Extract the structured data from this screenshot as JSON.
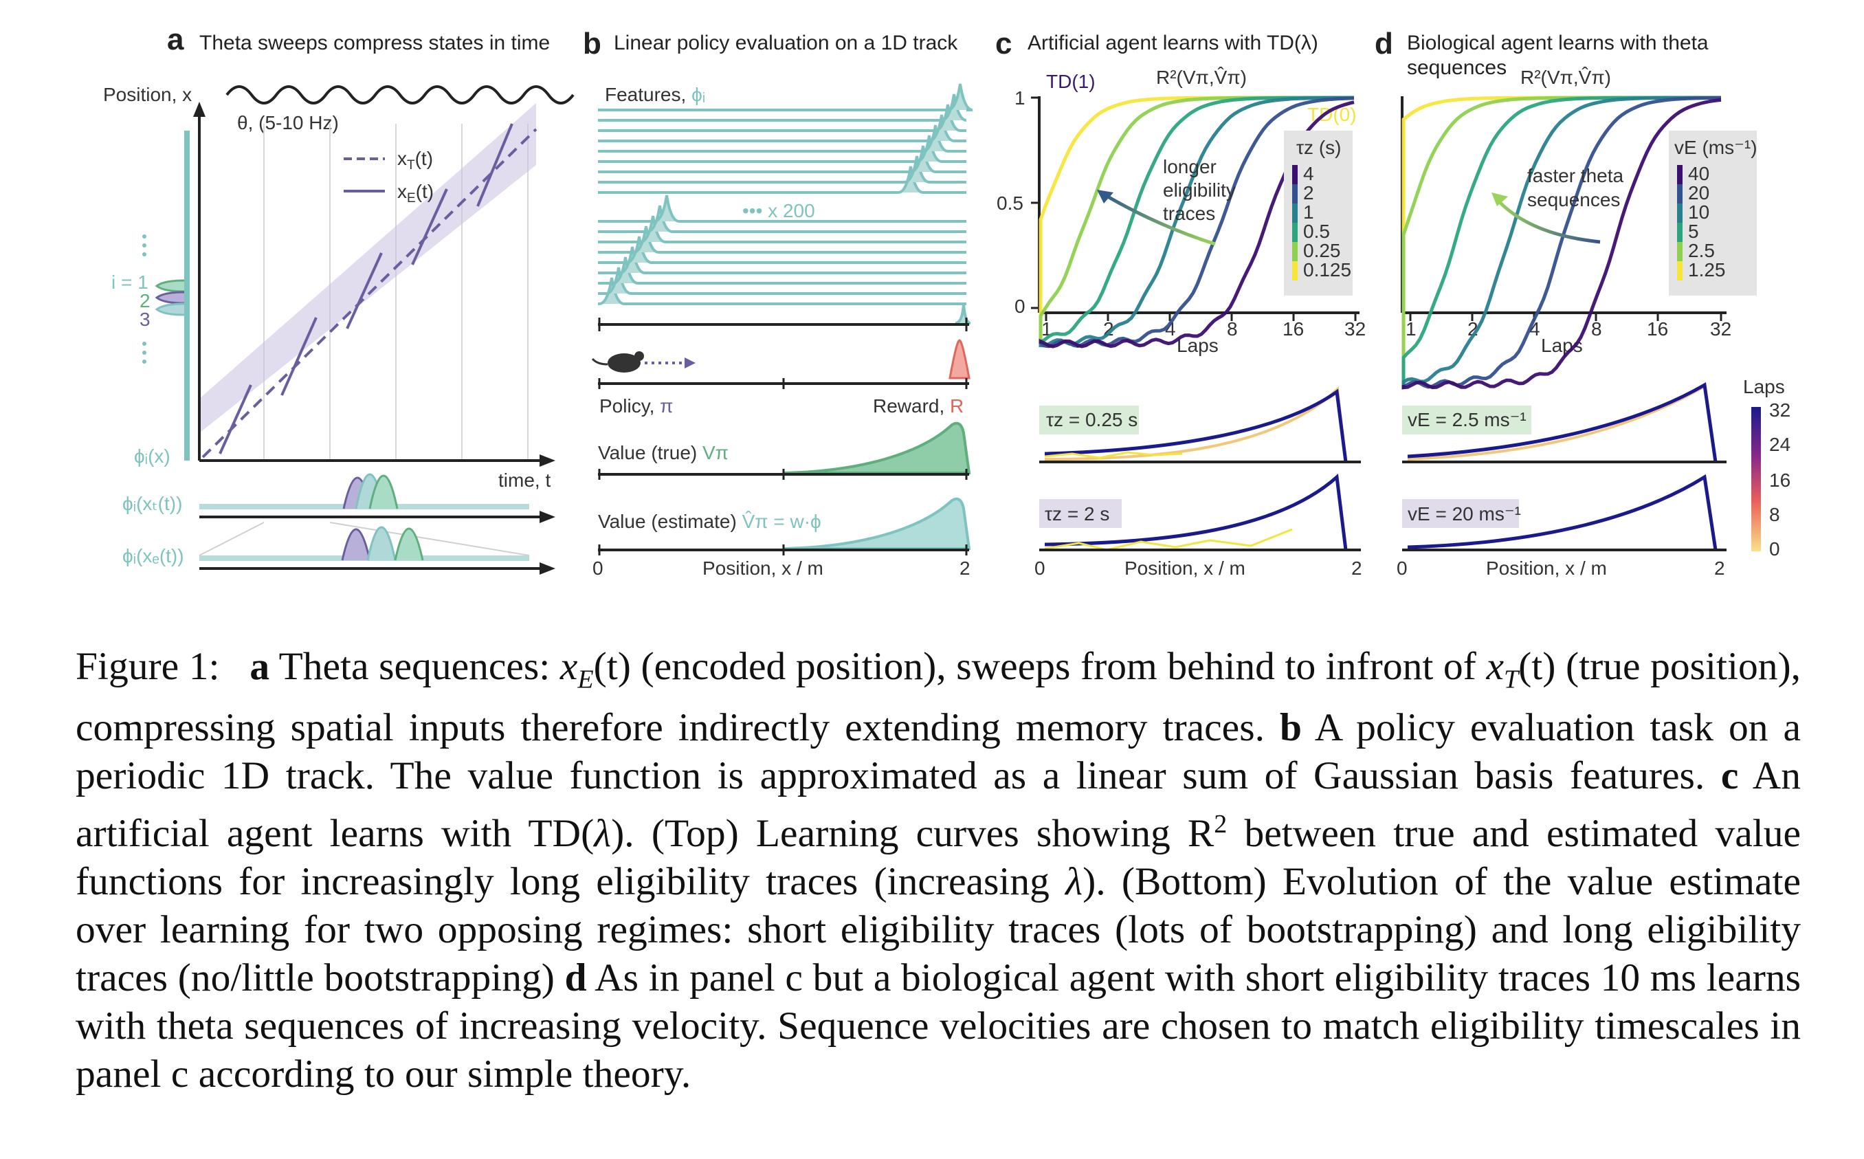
{
  "colors": {
    "teal": "#7fc3c1",
    "green": "#5fae7e",
    "purple": "#6a5f9e",
    "lavender": "#c8c0e0",
    "reward": "#e0665a",
    "yellow": "#f2e53c",
    "dark_purple": "#3a1a6e",
    "axis": "#222222"
  },
  "panel_a": {
    "letter": "a",
    "title": "Theta sweeps compress states in time",
    "y_label": "Position, x",
    "theta_label": "θ, (5-10 Hz)",
    "legend": [
      "xₜ(t)",
      "xᴇ(t)"
    ],
    "legend_true": "x",
    "legend_true_sub": "T",
    "legend_est": "x",
    "legend_est_sub": "E",
    "legend_suffix": "(t)",
    "feature_labels": [
      "i = 1",
      "2",
      "3"
    ],
    "phi_x": "ϕᵢ(x)",
    "phi_xt": "ϕᵢ(xₜ(t))",
    "phi_xe": "ϕᵢ(xₑ(t))",
    "x_label": "time, t"
  },
  "panel_b": {
    "letter": "b",
    "title": "Linear policy evaluation on a 1D track",
    "features_label": "Features, ",
    "features_symbol": "ϕᵢ",
    "count_label": "••• x 200",
    "policy_label": "Policy, ",
    "policy_symbol": "π",
    "reward_label": "Reward, ",
    "reward_symbol": "R",
    "value_true_label": "Value (true) ",
    "value_true_symbol": "Vπ",
    "value_est_label": "Value (estimate) ",
    "value_est_symbol": "V̂π = w·ϕ",
    "x_label": "Position, x  /  m",
    "x_ticks": [
      "0",
      "2"
    ]
  },
  "panel_c": {
    "letter": "c",
    "title": "Artificial agent learns with TD(λ)",
    "r2_label": "R²(Vπ,V̂π)",
    "td1": "TD(1)",
    "td0": "TD(0)",
    "annotation": [
      "longer",
      "eligibility",
      "traces"
    ],
    "legend_title": "τz (s)",
    "legend_items": [
      "4",
      "2",
      "1",
      "0.5",
      "0.25",
      "0.125"
    ],
    "x_label": "Laps",
    "x_ticks": [
      "1",
      "2",
      "4",
      "8",
      "16",
      "32"
    ],
    "y_ticks": [
      "0",
      "0.5",
      "1"
    ],
    "box1_label": "τz = 0.25 s",
    "box2_label": "τz = 2 s",
    "bottom_x_label": "Position, x  /  m",
    "bottom_x_ticks": [
      "0",
      "2"
    ]
  },
  "panel_d": {
    "letter": "d",
    "title_line1": "Biological agent learns with theta",
    "title_line2": "sequences",
    "r2_label": "R²(Vπ,V̂π)",
    "annotation": [
      "faster theta",
      "sequences"
    ],
    "legend_title": "vE (ms⁻¹)",
    "legend_items": [
      "40",
      "20",
      "10",
      "5",
      "2.5",
      "1.25"
    ],
    "x_label": "Laps",
    "x_ticks": [
      "1",
      "2",
      "4",
      "8",
      "16",
      "32"
    ],
    "box1_label": "vE = 2.5 ms⁻¹",
    "box2_label": "vE = 20 ms⁻¹",
    "bottom_x_label": "Position, x  /  m",
    "bottom_x_ticks": [
      "0",
      "2"
    ],
    "colorbar_title": "Laps",
    "colorbar_ticks": [
      "32",
      "24",
      "16",
      "8",
      "0"
    ]
  },
  "legend_colors": [
    "#3b0f70",
    "#35508e",
    "#287f8e",
    "#2aa57e",
    "#8fd14f",
    "#f7e53a"
  ],
  "caption": {
    "fig_label": "Figure 1:",
    "a_letter": "a",
    "a_text1": " Theta sequences: ",
    "a_math1": "x",
    "a_math1_sub": "E",
    "a_math1_arg": "(t)",
    "a_text2": " (encoded position), sweeps from behind to infront of ",
    "a_math2": "x",
    "a_math2_sub": "T",
    "a_math2_arg": "(t)",
    "a_text3": " (true position), compressing spatial inputs therefore indirectly extending memory traces. ",
    "b_letter": "b",
    "b_text": " A policy evaluation task on a periodic 1D track.  The value function is approximated as a linear sum of Gaussian basis features. ",
    "c_letter": "c",
    "c_text1": " An artificial agent learns with TD(",
    "c_lambda": "λ",
    "c_text2": ").  (Top) Learning curves showing R",
    "c_sup": "2",
    "c_text3": " between true and estimated value functions for increasingly long eligibility traces (increasing ",
    "c_lambda2": "λ",
    "c_text4": "). (Bottom) Evolution of the value estimate over learning for two opposing regimes: short eligibility traces (lots of bootstrapping) and long eligibility traces (no/little bootstrapping) ",
    "d_letter": "d",
    "d_text": " As in panel c but a biological agent with short eligibility traces 10 ms learns with theta sequences of increasing velocity. Sequence velocities are chosen to match eligibility timescales in panel c according to our simple theory."
  }
}
